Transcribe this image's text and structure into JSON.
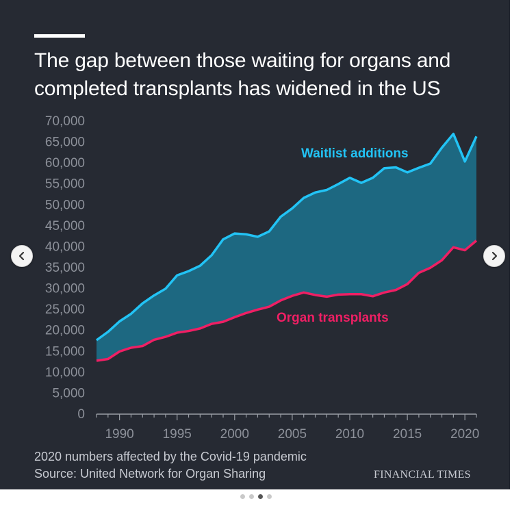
{
  "header": {
    "title": "The gap between those waiting for organs and completed transplants has widened in the US"
  },
  "footer": {
    "note": "2020 numbers affected by the Covid-19 pandemic",
    "source": "Source: United Network for Organ Sharing",
    "brand": "FINANCIAL TIMES"
  },
  "carousel": {
    "prev_icon": "chevron-left-icon",
    "next_icon": "chevron-right-icon",
    "dots": 4,
    "active_dot": 2
  },
  "colors": {
    "background": "#262a33",
    "waitlist": "#22c3f5",
    "transplants": "#ef1f64",
    "gap_fill": "#1d6f89",
    "axis_text": "#8c9099"
  },
  "chart_data": {
    "type": "area",
    "x": [
      1988,
      1989,
      1990,
      1991,
      1992,
      1993,
      1994,
      1995,
      1996,
      1997,
      1998,
      1999,
      2000,
      2001,
      2002,
      2003,
      2004,
      2005,
      2006,
      2007,
      2008,
      2009,
      2010,
      2011,
      2012,
      2013,
      2014,
      2015,
      2016,
      2017,
      2018,
      2019,
      2020,
      2021
    ],
    "series": [
      {
        "name": "Waitlist additions",
        "color": "#22c3f5",
        "values": [
          17500,
          19500,
          22000,
          23800,
          26300,
          28200,
          29800,
          33000,
          34000,
          35300,
          37800,
          41600,
          43000,
          42800,
          42200,
          43500,
          47000,
          49000,
          51500,
          52800,
          53400,
          54800,
          56300,
          55100,
          56300,
          58600,
          58800,
          57600,
          58700,
          59700,
          63500,
          66800,
          60200,
          66200
        ]
      },
      {
        "name": "Organ transplants",
        "color": "#ef1f64",
        "values": [
          12600,
          13000,
          14800,
          15700,
          16100,
          17600,
          18300,
          19300,
          19700,
          20300,
          21400,
          21900,
          23000,
          24000,
          24800,
          25500,
          27000,
          28100,
          28900,
          28300,
          27900,
          28400,
          28500,
          28500,
          28000,
          28900,
          29500,
          30900,
          33600,
          34800,
          36600,
          39700,
          39000,
          41300
        ]
      }
    ],
    "title": "The gap between those waiting for organs and completed transplants has widened in the US",
    "xlabel": "",
    "ylabel": "",
    "xticks": [
      1990,
      1995,
      2000,
      2005,
      2010,
      2015,
      2020
    ],
    "yticks": [
      0,
      5000,
      10000,
      15000,
      20000,
      25000,
      30000,
      35000,
      40000,
      45000,
      50000,
      55000,
      60000,
      65000,
      70000
    ],
    "ylim": [
      0,
      70000
    ],
    "xlim": [
      1988,
      2021
    ],
    "grid": false,
    "annotations": [
      "Waitlist additions",
      "Organ transplants"
    ]
  }
}
